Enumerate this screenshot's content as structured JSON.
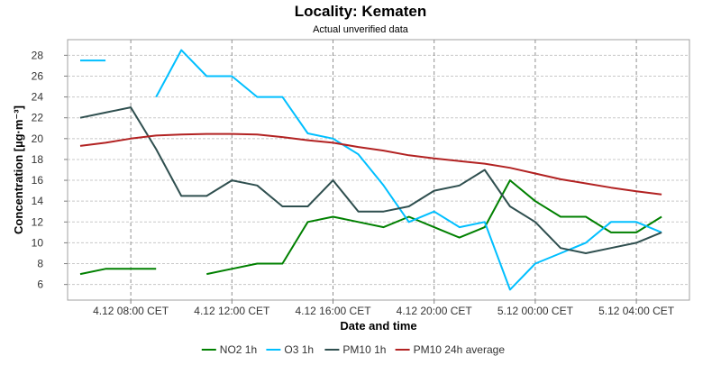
{
  "chart_data": {
    "type": "line",
    "title": "Locality: Kematen",
    "subtitle": "Actual unverified data",
    "xlabel": "Date and time",
    "ylabel": "Concentration [µg·m⁻³]",
    "ylim": [
      4.5,
      29.5
    ],
    "y_ticks": [
      6,
      8,
      10,
      12,
      14,
      16,
      18,
      20,
      22,
      24,
      26,
      28
    ],
    "x_ticks": [
      {
        "x": 8,
        "label": "4.12 08:00 CET"
      },
      {
        "x": 12,
        "label": "4.12 12:00 CET"
      },
      {
        "x": 16,
        "label": "4.12 16:00 CET"
      },
      {
        "x": 20,
        "label": "4.12 20:00 CET"
      },
      {
        "x": 24,
        "label": "5.12 00:00 CET"
      },
      {
        "x": 28,
        "label": "5.12 04:00 CET"
      }
    ],
    "x_unit": "hours from 4.12 00:00 CET",
    "xlim": [
      5.5,
      30.1
    ],
    "grid": true,
    "legend_position": "bottom",
    "x": [
      6,
      7,
      8,
      9,
      10,
      11,
      12,
      13,
      14,
      15,
      16,
      17,
      18,
      19,
      20,
      21,
      22,
      23,
      24,
      25,
      26,
      27,
      28,
      29
    ],
    "series": [
      {
        "name": "NO2 1h",
        "color": "#008000",
        "values": [
          7,
          7.5,
          7.5,
          7.5,
          null,
          7,
          7.5,
          8,
          8,
          12,
          12.5,
          12,
          11.5,
          12.5,
          11.5,
          10.5,
          11.5,
          16,
          14,
          12.5,
          12.5,
          11,
          11,
          12.5
        ]
      },
      {
        "name": "O3 1h",
        "color": "#00bfff",
        "values": [
          27.5,
          27.5,
          null,
          24,
          28.5,
          26,
          26,
          24,
          24,
          20.5,
          20,
          18.5,
          15.5,
          12,
          13,
          11.5,
          12,
          5.5,
          8,
          9,
          10,
          12,
          12,
          11
        ]
      },
      {
        "name": "PM10 1h",
        "color": "#2f4f4f",
        "values": [
          22,
          22.5,
          23,
          19,
          14.5,
          14.5,
          16,
          15.5,
          13.5,
          13.5,
          16,
          13,
          13,
          13.5,
          15,
          15.5,
          17,
          13.5,
          12,
          9.5,
          9,
          9.5,
          10,
          11
        ]
      },
      {
        "name": "PM10 24h average",
        "color": "#b22222",
        "values": [
          19.3,
          19.6,
          20,
          20.3,
          20.4,
          20.45,
          20.45,
          20.4,
          20.15,
          19.85,
          19.6,
          19.2,
          18.85,
          18.4,
          18.1,
          17.85,
          17.6,
          17.2,
          16.65,
          16.1,
          15.7,
          15.3,
          14.95,
          14.65
        ]
      }
    ]
  }
}
